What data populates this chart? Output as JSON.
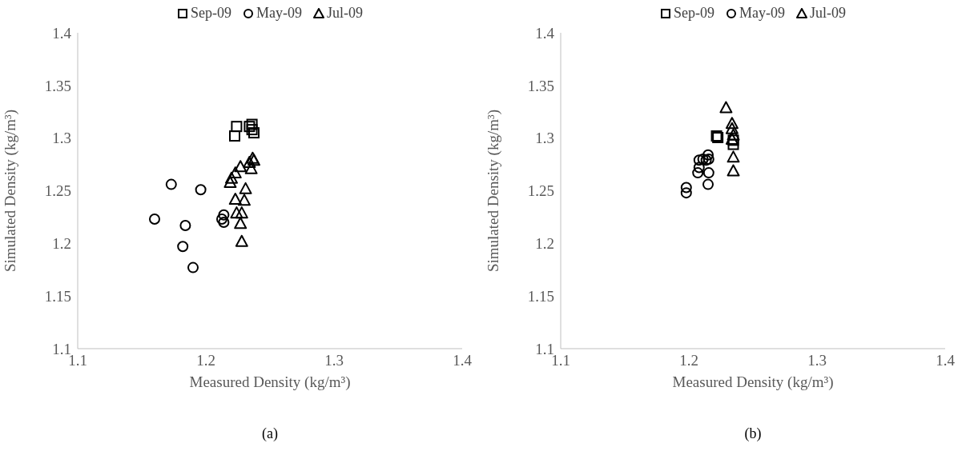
{
  "chart_data": [
    {
      "type": "scatter",
      "xlabel": "Measured Density (kg/m³)",
      "ylabel": "Simulated Density (kg/m³)",
      "xlim": [
        1.1,
        1.4
      ],
      "ylim": [
        1.1,
        1.4
      ],
      "xticks": [
        1.1,
        1.2,
        1.3,
        1.4
      ],
      "yticks": [
        1.1,
        1.15,
        1.2,
        1.25,
        1.3,
        1.35,
        1.4
      ],
      "legend": "top",
      "annotations": [
        "(a)"
      ],
      "series": [
        {
          "name": "Sep-09",
          "color": "#000000",
          "marker": "square",
          "x": [
            1.224,
            1.2225,
            1.236,
            1.236,
            1.234,
            1.2375
          ],
          "values": [
            1.311,
            1.302,
            1.313,
            1.308,
            1.311,
            1.305
          ]
        },
        {
          "name": "May-09",
          "color": "#000000",
          "marker": "circle",
          "x": [
            1.173,
            1.196,
            1.16,
            1.184,
            1.182,
            1.19,
            1.214,
            1.2125,
            1.214
          ],
          "values": [
            1.256,
            1.251,
            1.223,
            1.217,
            1.197,
            1.177,
            1.227,
            1.223,
            1.22
          ]
        },
        {
          "name": "Jul-09",
          "color": "#000000",
          "marker": "triangle",
          "x": [
            1.2365,
            1.2375,
            1.2354,
            1.234,
            1.227,
            1.223,
            1.22,
            1.219,
            1.231,
            1.223,
            1.23,
            1.224,
            1.228,
            1.227,
            1.228
          ],
          "values": [
            1.281,
            1.279,
            1.271,
            1.277,
            1.273,
            1.267,
            1.262,
            1.258,
            1.252,
            1.242,
            1.241,
            1.229,
            1.229,
            1.219,
            1.202
          ]
        }
      ]
    },
    {
      "type": "scatter",
      "xlabel": "Measured Density (kg/m³)",
      "ylabel": "Simulated Density (kg/m³)",
      "xlim": [
        1.1,
        1.4
      ],
      "ylim": [
        1.1,
        1.4
      ],
      "xticks": [
        1.1,
        1.2,
        1.3,
        1.4
      ],
      "yticks": [
        1.1,
        1.15,
        1.2,
        1.25,
        1.3,
        1.35,
        1.4
      ],
      "legend": "top",
      "annotations": [
        "(b)"
      ],
      "series": [
        {
          "name": "Sep-09",
          "color": "#000000",
          "marker": "square",
          "x": [
            1.2216,
            1.2226,
            1.2347,
            1.2347
          ],
          "values": [
            1.302,
            1.3005,
            1.294,
            1.298
          ]
        },
        {
          "name": "May-09",
          "color": "#000000",
          "marker": "circle",
          "x": [
            1.198,
            1.198,
            1.208,
            1.207,
            1.208,
            1.215,
            1.2135,
            1.2155,
            1.2155,
            1.215,
            1.211
          ],
          "values": [
            1.253,
            1.248,
            1.279,
            1.267,
            1.272,
            1.284,
            1.279,
            1.28,
            1.267,
            1.256,
            1.28
          ]
        },
        {
          "name": "Jul-09",
          "color": "#000000",
          "marker": "triangle",
          "x": [
            1.229,
            1.2337,
            1.2337,
            1.2347,
            1.2337,
            1.2347,
            1.2347
          ],
          "values": [
            1.329,
            1.314,
            1.309,
            1.303,
            1.299,
            1.282,
            1.269
          ]
        }
      ]
    }
  ]
}
